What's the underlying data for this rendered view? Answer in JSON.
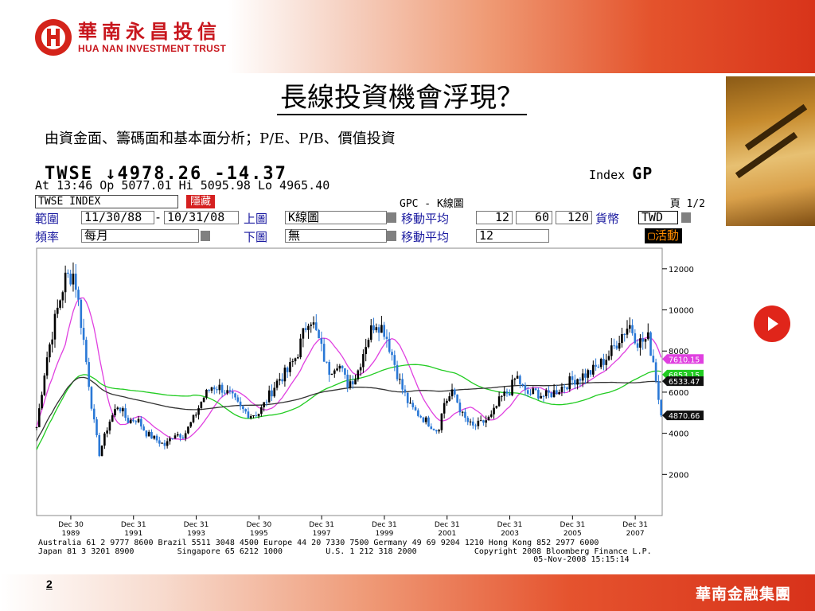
{
  "header": {
    "logo_cn": "華南永昌投信",
    "logo_en": "HUA NAN INVESTMENT TRUST"
  },
  "slide": {
    "title": "長線投資機會浮現？",
    "subtitle": "由資金面、籌碼面和基本面分析；P/E、P/B、價值投資",
    "page_number": "2",
    "group_name": "華南金融集團"
  },
  "terminal": {
    "ticker_line": "TWSE ↓4978.26  -14.37",
    "index_label": "Index",
    "gp_label": "GP",
    "quote_line": "At 13:46  Op 5077.01 Hi 5095.98 Lo 4965.40",
    "security": "TWSE INDEX",
    "hide_button": "隱藏",
    "function_title": "GPC - K線圖",
    "page_label": "頁 1/2",
    "range_label": "範圍",
    "range_start": "11/30/88",
    "range_dash": "-",
    "range_end": "10/31/08",
    "upper_chart_label": "上圖",
    "upper_chart_value": "K線圖",
    "ma_label": "移動平均",
    "ma_values": [
      "12",
      "60",
      "120"
    ],
    "currency_label": "貨幣",
    "currency_value": "TWD",
    "freq_label": "頻率",
    "freq_value": "每月",
    "lower_chart_label": "下圖",
    "lower_chart_value": "無",
    "ma2_label": "移動平均",
    "ma2_value": "12",
    "active_button": "活動",
    "footer_line1": "Australia 61 2 9777 8600 Brazil 5511 3048 4500 Europe 44 20 7330 7500 Germany 49 69 9204 1210 Hong Kong 852 2977 6000",
    "footer_line2": "Japan 81 3 3201 8900         Singapore 65 6212 1000         U.S. 1 212 318 2000            Copyright 2008 Bloomberg Finance L.P.",
    "footer_line3": "05-Nov-2008 15:15:14"
  },
  "chart_data": {
    "type": "line",
    "title": "",
    "xlabel": "",
    "ylabel": "",
    "ylim": [
      0,
      13000
    ],
    "yticks": [
      2000,
      4000,
      6000,
      8000,
      10000,
      12000
    ],
    "ytick_labels": [
      "2000",
      "4000",
      "6000",
      "8000",
      "10000",
      "12000"
    ],
    "x_ticks": [
      {
        "year": 1989.99,
        "top": "Dec 30",
        "bottom": "1989"
      },
      {
        "year": 1991.99,
        "top": "Dec 31",
        "bottom": "1991"
      },
      {
        "year": 1993.99,
        "top": "Dec 31",
        "bottom": "1993"
      },
      {
        "year": 1995.99,
        "top": "Dec 30",
        "bottom": "1995"
      },
      {
        "year": 1997.99,
        "top": "Dec 31",
        "bottom": "1997"
      },
      {
        "year": 1999.99,
        "top": "Dec 31",
        "bottom": "1999"
      },
      {
        "year": 2001.99,
        "top": "Dec 31",
        "bottom": "2001"
      },
      {
        "year": 2003.99,
        "top": "Dec 31",
        "bottom": "2003"
      },
      {
        "year": 2005.99,
        "top": "Dec 31",
        "bottom": "2005"
      },
      {
        "year": 2007.99,
        "top": "Dec 31",
        "bottom": "2007"
      }
    ],
    "x_range": [
      1988.9,
      2008.85
    ],
    "price_series": {
      "name": "TWSE INDEX",
      "x": [
        1988.9,
        1989.2,
        1989.5,
        1989.8,
        1990.1,
        1990.4,
        1990.7,
        1990.9,
        1991.2,
        1991.5,
        1991.8,
        1992.1,
        1992.4,
        1992.7,
        1993.0,
        1993.3,
        1993.6,
        1993.9,
        1994.2,
        1994.5,
        1994.8,
        1995.1,
        1995.4,
        1995.7,
        1996.0,
        1996.3,
        1996.6,
        1996.9,
        1997.2,
        1997.6,
        1997.9,
        1998.2,
        1998.5,
        1998.8,
        1999.1,
        1999.4,
        1999.7,
        2000.0,
        2000.2,
        2000.5,
        2000.8,
        2001.1,
        2001.4,
        2001.7,
        2001.9,
        2002.2,
        2002.5,
        2002.8,
        2003.1,
        2003.4,
        2003.7,
        2004.0,
        2004.2,
        2004.5,
        2004.8,
        2005.1,
        2005.4,
        2005.7,
        2006.0,
        2006.3,
        2006.6,
        2006.9,
        2007.2,
        2007.5,
        2007.8,
        2008.1,
        2008.4,
        2008.6,
        2008.8
      ],
      "values": [
        4300,
        7500,
        9600,
        11500,
        11800,
        8500,
        4800,
        3000,
        4500,
        5400,
        4600,
        4700,
        4000,
        3700,
        3400,
        4000,
        3900,
        4700,
        5700,
        6300,
        6200,
        5800,
        5200,
        4900,
        5000,
        5800,
        6600,
        7000,
        7800,
        9800,
        8500,
        7000,
        7500,
        6400,
        6800,
        8400,
        9500,
        9000,
        8000,
        6400,
        5300,
        4900,
        4500,
        4100,
        5500,
        6000,
        4800,
        4300,
        4500,
        4800,
        5700,
        6100,
        6800,
        5900,
        6000,
        5800,
        6000,
        6300,
        6600,
        6800,
        7000,
        7400,
        7900,
        8700,
        9300,
        8400,
        8600,
        7300,
        4870
      ],
      "last_label": "4870.66"
    },
    "series": [
      {
        "name": "",
        "ma": 12,
        "color": "#e040e0",
        "last_label": "7610.15"
      },
      {
        "name": "",
        "ma": 60,
        "color": "#22cc22",
        "last_label": "6853.15"
      },
      {
        "name": "",
        "ma": 120,
        "color": "#333333",
        "last_label": "6533.47"
      }
    ],
    "colors": {
      "up": "#000000",
      "down": "#2a78d6",
      "last": "#000000"
    }
  }
}
